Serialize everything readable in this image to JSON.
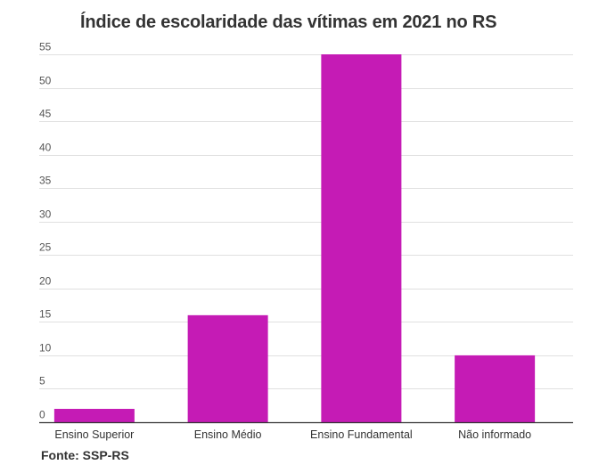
{
  "chart_data": {
    "type": "bar",
    "title": "Índice de escolaridade das vítimas em 2021 no RS",
    "categories": [
      "Ensino Superior",
      "Ensino Médio",
      "Ensino Fundamental",
      "Não informado"
    ],
    "values": [
      2,
      16,
      55,
      10
    ],
    "ylim": [
      0,
      55
    ],
    "yticks": [
      0,
      5,
      10,
      15,
      20,
      25,
      30,
      35,
      40,
      45,
      50,
      55
    ],
    "xlabel": "",
    "ylabel": "",
    "grid": true,
    "legend": "none",
    "bar_color": "#c51bb5",
    "grid_color": "#e0e0e0",
    "axis_color": "#333333"
  },
  "source": "Fonte: SSP-RS"
}
